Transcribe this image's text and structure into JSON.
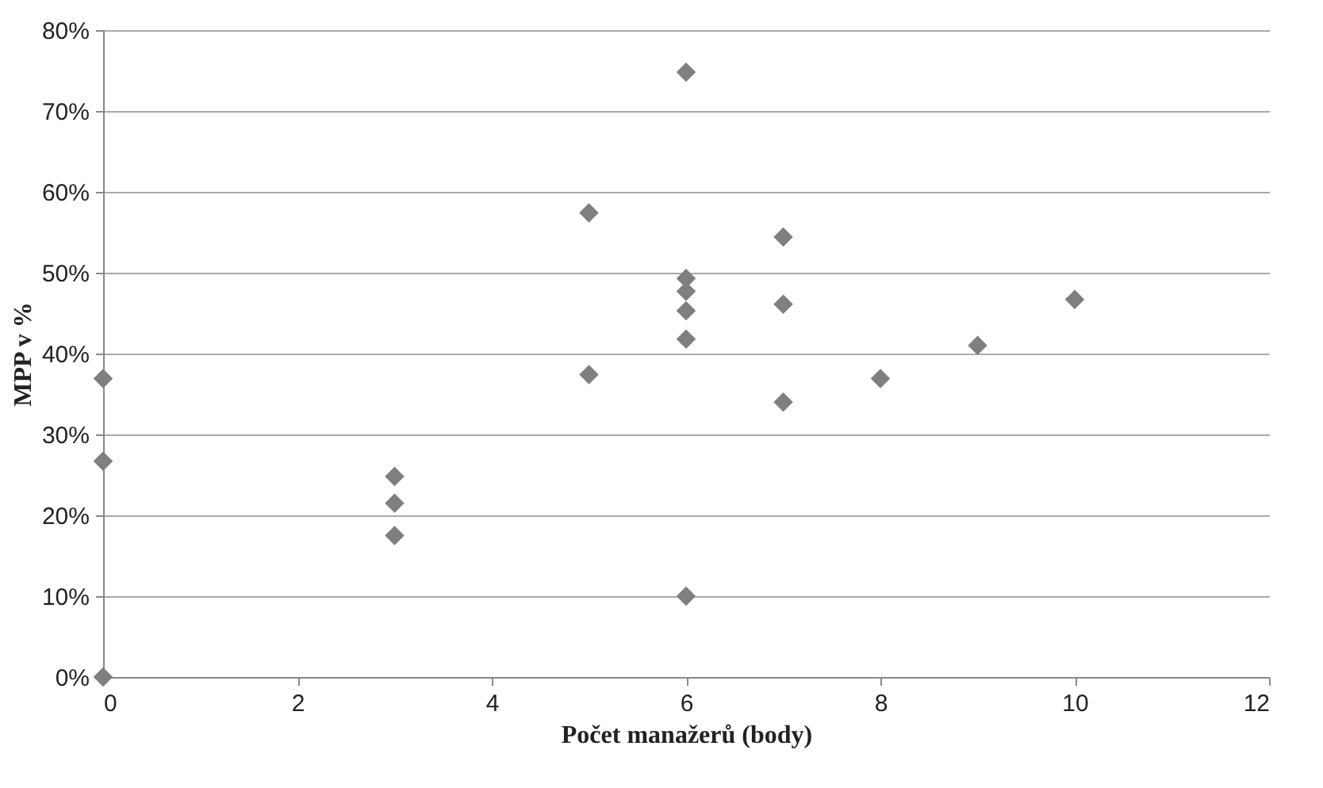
{
  "chart_data": {
    "type": "scatter",
    "xlabel": "Počet manažerů (body)",
    "ylabel": "MPP  v %",
    "x": [
      0,
      0,
      0,
      3,
      3,
      3,
      5,
      5,
      6,
      6,
      6,
      6,
      6,
      6,
      7,
      7,
      7,
      8,
      9,
      10
    ],
    "values": [
      36.9,
      26.7,
      0,
      24.8,
      21.5,
      17.5,
      57.4,
      37.4,
      74.8,
      49.3,
      47.7,
      45.3,
      41.8,
      10.0,
      54.4,
      46.1,
      34.0,
      36.9,
      41.0,
      46.7
    ],
    "color": "#7f7f7f",
    "marker": "diamond",
    "grid": "y",
    "legend": false,
    "xlim": [
      0,
      12
    ],
    "xticks": [
      0,
      2,
      4,
      6,
      8,
      10,
      12
    ],
    "ylim": [
      0,
      80
    ],
    "yticks": [
      {
        "value": 0,
        "label": "0%"
      },
      {
        "value": 10,
        "label": "10%"
      },
      {
        "value": 20,
        "label": "20%"
      },
      {
        "value": 30,
        "label": "30%"
      },
      {
        "value": 40,
        "label": "40%"
      },
      {
        "value": 50,
        "label": "50%"
      },
      {
        "value": 60,
        "label": "60%"
      },
      {
        "value": 70,
        "label": "70%"
      },
      {
        "value": 80,
        "label": "80%"
      }
    ]
  }
}
